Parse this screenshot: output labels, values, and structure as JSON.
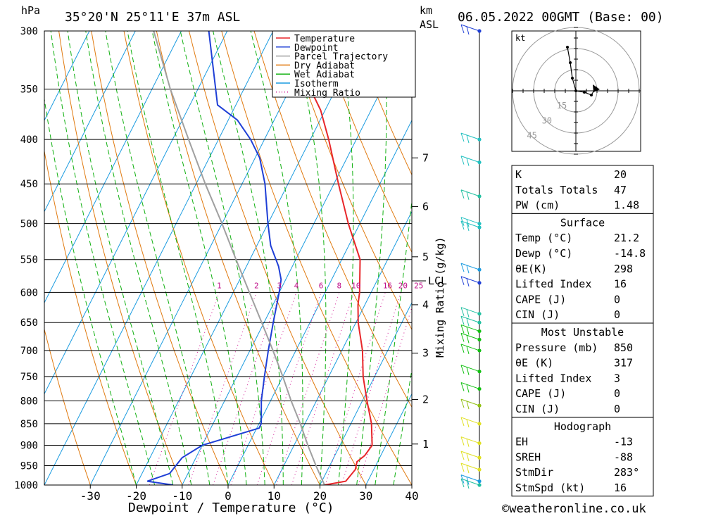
{
  "header": {
    "location": "35°20'N  25°11'E  37m  ASL",
    "datetime": "06.05.2022  00GMT  (Base: 00)",
    "hpa_unit": "hPa",
    "km_unit": "km",
    "asl_unit": "ASL"
  },
  "chart_data": {
    "type": "line",
    "title": "35°20'N  25°11'E  37m  ASL",
    "xlabel": "Dewpoint / Temperature (°C)",
    "ylabel": "hPa",
    "secondary_ylabel": "Mixing Ratio (g/kg)",
    "xlim": [
      -40,
      40
    ],
    "ylim": [
      1000,
      300
    ],
    "y_scale": "log",
    "x_ticks": [
      -30,
      -20,
      -10,
      0,
      10,
      20,
      30,
      40
    ],
    "pressure_levels": [
      300,
      350,
      400,
      450,
      500,
      550,
      600,
      650,
      700,
      750,
      800,
      850,
      900,
      950,
      1000
    ],
    "km_ticks": [
      {
        "label": "7",
        "p": 420
      },
      {
        "label": "6",
        "p": 478
      },
      {
        "label": "5",
        "p": 546
      },
      {
        "label": "4",
        "p": 620
      },
      {
        "label": "3",
        "p": 705
      },
      {
        "label": "2",
        "p": 797
      },
      {
        "label": "1",
        "p": 897
      }
    ],
    "lcl": {
      "label": "LCL",
      "p": 582
    },
    "mixing_ratio_labels": [
      "1",
      "2",
      "3",
      "4",
      "6",
      "8",
      "10",
      "16",
      "20",
      "25"
    ],
    "legend": {
      "placement": "top-right",
      "entries": [
        {
          "name": "Temperature",
          "color": "#e8262a",
          "style": "solid"
        },
        {
          "name": "Dewpoint",
          "color": "#1f3fd6",
          "style": "solid"
        },
        {
          "name": "Parcel Trajectory",
          "color": "#a0a0a0",
          "style": "solid"
        },
        {
          "name": "Dry Adiabat",
          "color": "#e07a10",
          "style": "solid"
        },
        {
          "name": "Wet Adiabat",
          "color": "#10b010",
          "style": "solid"
        },
        {
          "name": "Isotherm",
          "color": "#1a9be0",
          "style": "solid"
        },
        {
          "name": "Mixing Ratio",
          "color": "#d01090",
          "style": "dotted"
        }
      ]
    },
    "series": [
      {
        "name": "Temperature",
        "points": [
          [
            1000,
            21.0
          ],
          [
            990,
            25.2
          ],
          [
            960,
            26.0
          ],
          [
            940,
            25.5
          ],
          [
            925,
            26.5
          ],
          [
            900,
            27.0
          ],
          [
            850,
            24.5
          ],
          [
            800,
            21.0
          ],
          [
            750,
            17.5
          ],
          [
            700,
            14.5
          ],
          [
            650,
            10.5
          ],
          [
            620,
            8.5
          ],
          [
            600,
            7.5
          ],
          [
            550,
            4.0
          ],
          [
            500,
            -2.5
          ],
          [
            450,
            -9.0
          ],
          [
            400,
            -16.0
          ],
          [
            370,
            -21.0
          ],
          [
            350,
            -25.5
          ],
          [
            300,
            -36.0
          ]
        ]
      },
      {
        "name": "Dewpoint",
        "points": [
          [
            1000,
            -12.0
          ],
          [
            990,
            -18.0
          ],
          [
            970,
            -14.0
          ],
          [
            930,
            -13.0
          ],
          [
            900,
            -10.0
          ],
          [
            860,
            0.5
          ],
          [
            850,
            0.5
          ],
          [
            800,
            -2.0
          ],
          [
            750,
            -4.0
          ],
          [
            700,
            -6.0
          ],
          [
            650,
            -8.0
          ],
          [
            600,
            -10.0
          ],
          [
            580,
            -11.0
          ],
          [
            560,
            -13.0
          ],
          [
            530,
            -17.0
          ],
          [
            500,
            -20.0
          ],
          [
            450,
            -25.0
          ],
          [
            420,
            -29.0
          ],
          [
            400,
            -33.0
          ],
          [
            380,
            -38.0
          ],
          [
            365,
            -44.0
          ],
          [
            300,
            -54.0
          ]
        ]
      },
      {
        "name": "Parcel Trajectory",
        "points": [
          [
            1000,
            21.0
          ],
          [
            950,
            17.0
          ],
          [
            900,
            13.0
          ],
          [
            850,
            9.0
          ],
          [
            800,
            4.5
          ],
          [
            750,
            0.0
          ],
          [
            700,
            -5.0
          ],
          [
            650,
            -10.5
          ],
          [
            600,
            -16.5
          ],
          [
            550,
            -23.0
          ],
          [
            500,
            -30.0
          ],
          [
            450,
            -38.0
          ],
          [
            400,
            -46.5
          ],
          [
            350,
            -56.0
          ],
          [
            300,
            -66.0
          ]
        ]
      }
    ]
  },
  "hodograph": {
    "unit": "kt",
    "rings": [
      "15",
      "30",
      "45"
    ],
    "points": [
      [
        -12,
        62
      ],
      [
        -8,
        40
      ],
      [
        -5,
        18
      ],
      [
        0,
        0
      ],
      [
        12,
        -2
      ],
      [
        22,
        -6
      ],
      [
        28,
        4
      ]
    ]
  },
  "table": {
    "indices": [
      {
        "label": "K",
        "value": "20"
      },
      {
        "label": "Totals Totals",
        "value": "47"
      },
      {
        "label": "PW (cm)",
        "value": "1.48"
      }
    ],
    "surface": {
      "title": "Surface",
      "rows": [
        {
          "label": "Temp (°C)",
          "value": "21.2"
        },
        {
          "label": "Dewp (°C)",
          "value": "-14.8"
        },
        {
          "label": "θE(K)",
          "value": "298"
        },
        {
          "label": "Lifted Index",
          "value": "16"
        },
        {
          "label": "CAPE (J)",
          "value": "0"
        },
        {
          "label": "CIN (J)",
          "value": "0"
        }
      ]
    },
    "most_unstable": {
      "title": "Most Unstable",
      "rows": [
        {
          "label": "Pressure (mb)",
          "value": "850"
        },
        {
          "label": "θE (K)",
          "value": "317"
        },
        {
          "label": "Lifted Index",
          "value": "3"
        },
        {
          "label": "CAPE (J)",
          "value": "0"
        },
        {
          "label": "CIN (J)",
          "value": "0"
        }
      ]
    },
    "hodograph": {
      "title": "Hodograph",
      "rows": [
        {
          "label": "EH",
          "value": "-13"
        },
        {
          "label": "SREH",
          "value": "-88"
        },
        {
          "label": "StmDir",
          "value": "283°"
        },
        {
          "label": "StmSpd (kt)",
          "value": "16"
        }
      ]
    }
  },
  "wind_profile": [
    {
      "p": 300,
      "color": "#1f3fd6"
    },
    {
      "p": 400,
      "color": "#20c0c0"
    },
    {
      "p": 425,
      "color": "#20c0c0"
    },
    {
      "p": 465,
      "color": "#20c0a0"
    },
    {
      "p": 500,
      "color": "#20c0c0"
    },
    {
      "p": 505,
      "color": "#20c0c0"
    },
    {
      "p": 565,
      "color": "#1a9be0"
    },
    {
      "p": 585,
      "color": "#1f3fd6"
    },
    {
      "p": 635,
      "color": "#20c0a0"
    },
    {
      "p": 650,
      "color": "#20c0a0"
    },
    {
      "p": 665,
      "color": "#10c010"
    },
    {
      "p": 680,
      "color": "#10c010"
    },
    {
      "p": 700,
      "color": "#10c010"
    },
    {
      "p": 740,
      "color": "#10c010"
    },
    {
      "p": 775,
      "color": "#10c010"
    },
    {
      "p": 810,
      "color": "#90c010"
    },
    {
      "p": 850,
      "color": "#e0e020"
    },
    {
      "p": 895,
      "color": "#e0e020"
    },
    {
      "p": 930,
      "color": "#e0e020"
    },
    {
      "p": 960,
      "color": "#e0e020"
    },
    {
      "p": 990,
      "color": "#1a9be0"
    },
    {
      "p": 1000,
      "color": "#20c0a0"
    }
  ],
  "footer": {
    "copyright": "©weatheronline.co.uk"
  }
}
